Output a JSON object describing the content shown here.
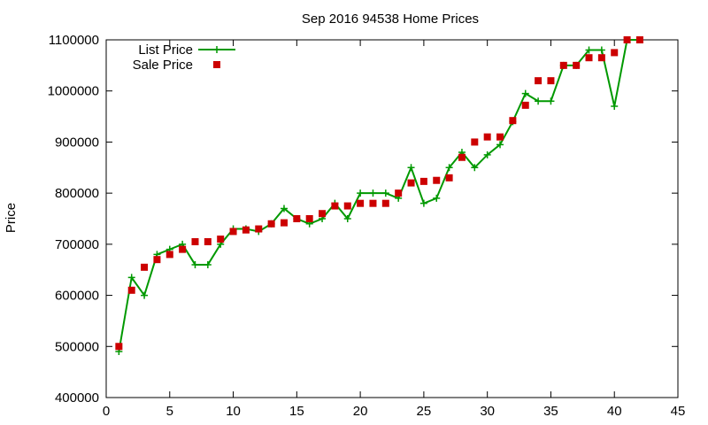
{
  "chart_data": {
    "type": "line",
    "title": "Sep 2016 94538 Home Prices",
    "xlabel": "",
    "ylabel": "Price",
    "xlim": [
      0,
      45
    ],
    "ylim": [
      400000,
      1100000
    ],
    "x_ticks": [
      0,
      5,
      10,
      15,
      20,
      25,
      30,
      35,
      40,
      45
    ],
    "y_ticks": [
      400000,
      500000,
      600000,
      700000,
      800000,
      900000,
      1000000,
      1100000
    ],
    "grid": false,
    "legend_position": "top-left",
    "series": [
      {
        "name": "List Price",
        "style": "line-plus",
        "color": "#009900",
        "x": [
          1,
          2,
          3,
          4,
          5,
          6,
          7,
          8,
          9,
          10,
          11,
          12,
          13,
          14,
          15,
          16,
          17,
          18,
          19,
          20,
          21,
          22,
          23,
          24,
          25,
          26,
          27,
          28,
          29,
          30,
          31,
          32,
          33,
          34,
          35,
          36,
          37,
          38,
          39,
          40,
          41,
          42
        ],
        "y": [
          490000,
          635000,
          600000,
          680000,
          690000,
          700000,
          660000,
          660000,
          700000,
          730000,
          730000,
          725000,
          740000,
          770000,
          750000,
          740000,
          750000,
          780000,
          750000,
          800000,
          800000,
          800000,
          790000,
          850000,
          780000,
          790000,
          850000,
          880000,
          850000,
          875000,
          895000,
          940000,
          995000,
          980000,
          980000,
          1050000,
          1050000,
          1080000,
          1080000,
          970000,
          1100000,
          1100000
        ]
      },
      {
        "name": "Sale Price",
        "style": "points-square",
        "color": "#cc0000",
        "x": [
          1,
          2,
          3,
          4,
          5,
          6,
          7,
          8,
          9,
          10,
          11,
          12,
          13,
          14,
          15,
          16,
          17,
          18,
          19,
          20,
          21,
          22,
          23,
          24,
          25,
          26,
          27,
          28,
          29,
          30,
          31,
          32,
          33,
          34,
          35,
          36,
          37,
          38,
          39,
          40,
          41,
          42
        ],
        "y": [
          500000,
          610000,
          655000,
          670000,
          680000,
          690000,
          705000,
          705000,
          710000,
          725000,
          728000,
          730000,
          740000,
          742000,
          750000,
          750000,
          760000,
          775000,
          775000,
          780000,
          780000,
          780000,
          800000,
          820000,
          823000,
          825000,
          830000,
          870000,
          900000,
          910000,
          910000,
          942000,
          972000,
          1020000,
          1020000,
          1050000,
          1050000,
          1065000,
          1065000,
          1075000,
          1100000,
          1100000
        ]
      }
    ]
  }
}
